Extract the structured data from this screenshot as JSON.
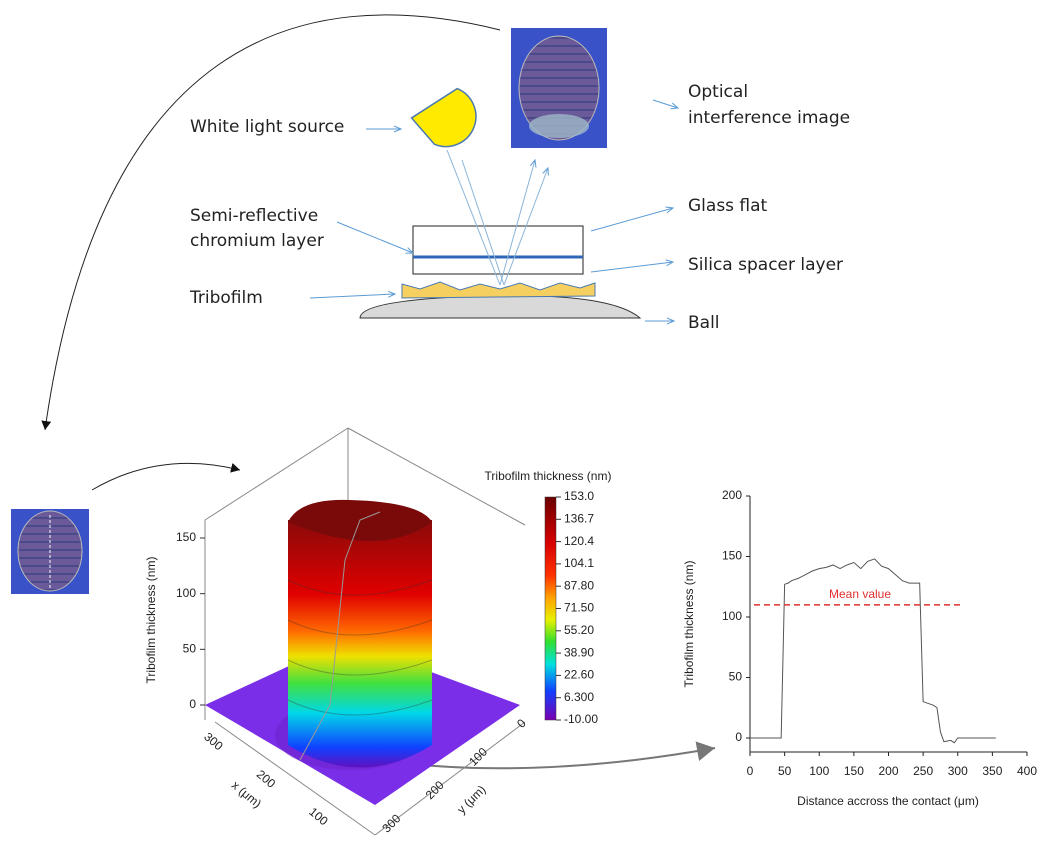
{
  "diagram": {
    "white_light_source": "White light source",
    "optical_image": [
      "Optical",
      "interference image"
    ],
    "chromium_layer": [
      "Semi-reflective",
      "chromium layer"
    ],
    "glass_flat": "Glass flat",
    "silica_layer": "Silica spacer layer",
    "tribofilm": "Tribofilm",
    "ball": "Ball"
  },
  "surface_plot": {
    "z_label": "Tribofilm thickness (nm)",
    "zticks": [
      0,
      50,
      100,
      150
    ],
    "x_label": "x (μm)",
    "xticks": [
      100,
      200,
      300
    ],
    "y_label": "y (μm)",
    "yticks": [
      0,
      100,
      200,
      300
    ],
    "colorbar_title": "Tribofilm thickness (nm)",
    "colorbar_ticks": [
      {
        "value": 153,
        "label": "153.0"
      },
      {
        "value": 136.7,
        "label": "136.7"
      },
      {
        "value": 120.4,
        "label": "120.4"
      },
      {
        "value": 104.1,
        "label": "104.1"
      },
      {
        "value": 87.8,
        "label": "87.80"
      },
      {
        "value": 71.5,
        "label": "71.50"
      },
      {
        "value": 55.2,
        "label": "55.20"
      },
      {
        "value": 38.9,
        "label": "38.90"
      },
      {
        "value": 22.6,
        "label": "22.60"
      },
      {
        "value": 6.3,
        "label": "6.300"
      },
      {
        "value": -10,
        "label": "-10.00"
      }
    ]
  },
  "chart_data": {
    "type": "line",
    "x_label": "Distance accross the contact (μm)",
    "y_label": "Tribofilm thickness (nm)",
    "color": "#555555",
    "x": [
      0,
      45,
      50,
      55,
      60,
      70,
      80,
      90,
      100,
      110,
      120,
      130,
      140,
      150,
      160,
      170,
      180,
      190,
      200,
      210,
      220,
      230,
      245,
      250,
      265,
      270,
      275,
      280,
      290,
      295,
      300,
      305,
      355
    ],
    "values": [
      0,
      0,
      127,
      128,
      130,
      132,
      135,
      138,
      140,
      141,
      143,
      140,
      143,
      145,
      140,
      146,
      148,
      142,
      140,
      135,
      130,
      128,
      128,
      30,
      27,
      25,
      5,
      -3,
      -2,
      -4,
      0,
      0,
      0
    ],
    "xlim": [
      0,
      400
    ],
    "xticks": [
      0,
      50,
      100,
      150,
      200,
      250,
      300,
      350,
      400
    ],
    "ylim": [
      0,
      200
    ],
    "yticks": [
      0,
      50,
      100,
      150,
      200
    ],
    "mean_line": {
      "label": "Mean value",
      "value": 110,
      "color": "#e03030"
    }
  }
}
